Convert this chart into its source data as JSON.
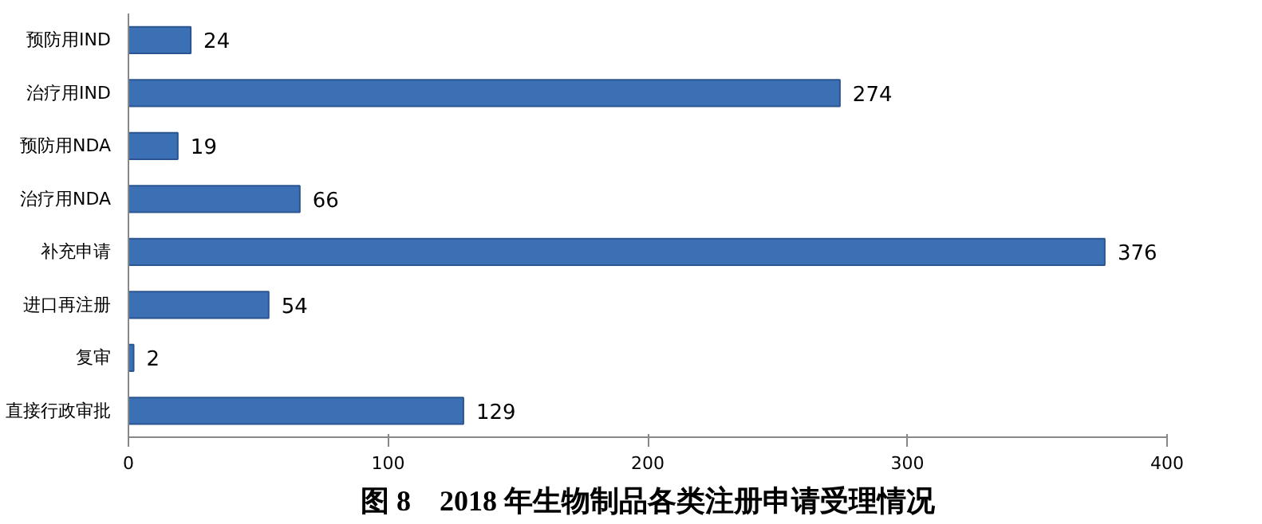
{
  "chart_data": {
    "type": "bar",
    "orientation": "horizontal",
    "title": "图 8　2018 年生物制品各类注册申请受理情况",
    "categories": [
      "预防用IND",
      "治疗用IND",
      "预防用NDA",
      "治疗用NDA",
      "补充申请",
      "进口再注册",
      "复审",
      "直接行政审批"
    ],
    "values": [
      24,
      274,
      19,
      66,
      376,
      54,
      2,
      129
    ],
    "color": "#3c70b4",
    "data_labels": true,
    "grid": false,
    "xlim": [
      0,
      400
    ],
    "xticks": [
      0,
      100,
      200,
      300,
      400
    ]
  }
}
